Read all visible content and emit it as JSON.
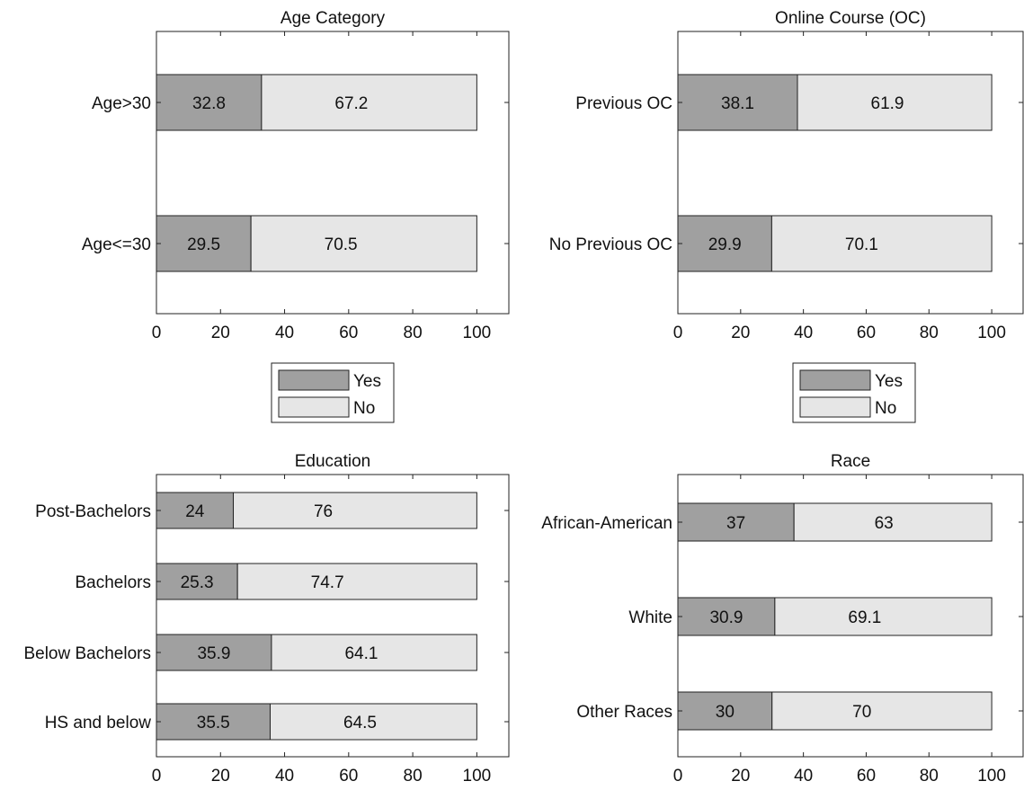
{
  "chart_data": [
    {
      "type": "bar",
      "orientation": "horizontal",
      "stacked": true,
      "title": "Age Category",
      "categories": [
        "Age>30",
        "Age<=30"
      ],
      "series": [
        {
          "name": "Yes",
          "values": [
            32.8,
            29.5
          ]
        },
        {
          "name": "No",
          "values": [
            67.2,
            70.5
          ]
        }
      ],
      "xlim": [
        0,
        110
      ],
      "xticks": [
        0,
        20,
        40,
        60,
        80,
        100
      ],
      "legend": "below",
      "grid": false
    },
    {
      "type": "bar",
      "orientation": "horizontal",
      "stacked": true,
      "title": "Online Course (OC)",
      "categories": [
        "Previous OC",
        "No Previous OC"
      ],
      "series": [
        {
          "name": "Yes",
          "values": [
            38.1,
            29.9
          ]
        },
        {
          "name": "No",
          "values": [
            61.9,
            70.1
          ]
        }
      ],
      "xlim": [
        0,
        110
      ],
      "xticks": [
        0,
        20,
        40,
        60,
        80,
        100
      ],
      "legend": "below",
      "grid": false
    },
    {
      "type": "bar",
      "orientation": "horizontal",
      "stacked": true,
      "title": "Education",
      "categories": [
        "Post-Bachelors",
        "Bachelors",
        "Below Bachelors",
        "HS and below"
      ],
      "series": [
        {
          "name": "Yes",
          "values": [
            24,
            25.3,
            35.9,
            35.5
          ]
        },
        {
          "name": "No",
          "values": [
            76,
            74.7,
            64.1,
            64.5
          ]
        }
      ],
      "xlim": [
        0,
        110
      ],
      "xticks": [
        0,
        20,
        40,
        60,
        80,
        100
      ],
      "grid": false
    },
    {
      "type": "bar",
      "orientation": "horizontal",
      "stacked": true,
      "title": "Race",
      "categories": [
        "African-American",
        "White",
        "Other Races"
      ],
      "series": [
        {
          "name": "Yes",
          "values": [
            37,
            30.9,
            30
          ]
        },
        {
          "name": "No",
          "values": [
            63,
            69.1,
            70
          ]
        }
      ],
      "xlim": [
        0,
        110
      ],
      "xticks": [
        0,
        20,
        40,
        60,
        80,
        100
      ],
      "grid": false
    }
  ],
  "colors": {
    "yes": "#a0a0a0",
    "no": "#e6e6e6",
    "edge": "#222222"
  }
}
